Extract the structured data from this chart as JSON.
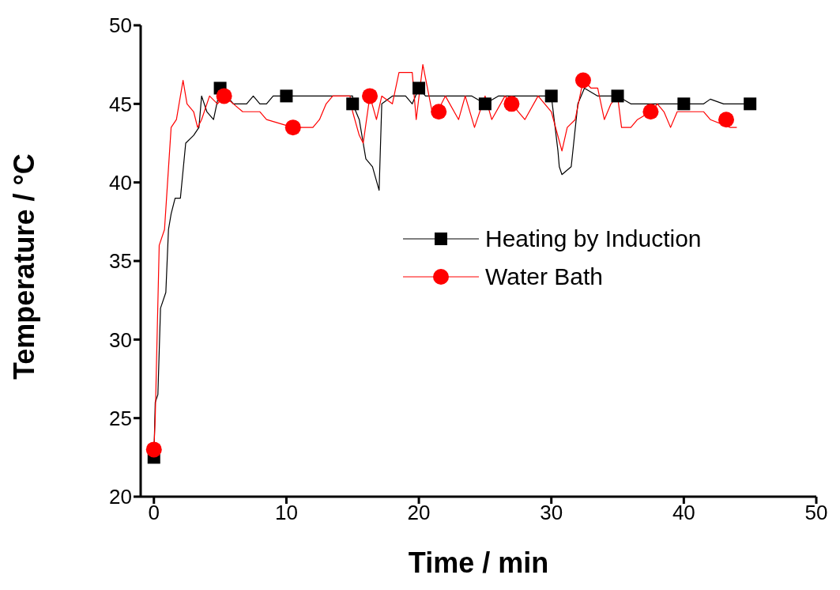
{
  "chart_data": {
    "type": "line",
    "xlabel": "Time / min",
    "ylabel": "Temperature / °C",
    "xlim": [
      -1,
      50
    ],
    "xticks": [
      0,
      10,
      20,
      30,
      40,
      50
    ],
    "ylim": [
      20,
      50
    ],
    "yticks": [
      20,
      25,
      30,
      35,
      40,
      45,
      50
    ],
    "grid": false,
    "legend": "right",
    "line_style": "solid",
    "series": [
      {
        "color": "#000000",
        "marker": "none",
        "x": [
          0,
          0.1,
          0.3,
          0.5,
          0.9,
          1.1,
          1.3,
          1.6,
          2,
          2.4,
          3,
          3.4,
          3.6,
          4,
          4.5,
          5,
          6,
          7,
          7.5,
          8,
          8.5,
          9,
          12,
          15,
          15,
          15.5,
          16,
          16.5,
          17,
          17.2,
          18,
          19,
          19.5,
          20,
          20.5,
          21,
          24,
          25,
          26,
          30,
          30.5,
          30.6,
          30.8,
          31.5,
          32,
          32.5,
          33.5,
          35,
          36,
          40,
          41.5,
          42,
          43,
          45
        ],
        "values": [
          22.5,
          26,
          26.5,
          32,
          33,
          37,
          38,
          39,
          39,
          42.5,
          43,
          43.5,
          45.5,
          44.5,
          44,
          46,
          45,
          45,
          45.5,
          45,
          45,
          45.5,
          45.5,
          45.5,
          45,
          44,
          41.5,
          41,
          39.5,
          45,
          45.5,
          45.5,
          45,
          46,
          45.5,
          45.5,
          45.5,
          45,
          45.5,
          45.5,
          42,
          41,
          40.5,
          41,
          45,
          46,
          45.5,
          45.5,
          45,
          45,
          45,
          45.3,
          45,
          45
        ]
      },
      {
        "color": "#ff0000",
        "marker": "none",
        "x": [
          0,
          0.1,
          0.4,
          0.8,
          1.3,
          1.7,
          2.2,
          2.5,
          3,
          3.3,
          3.6,
          4.2,
          4.8,
          5.3,
          6,
          6.7,
          8,
          8.5,
          10.5,
          12,
          12.5,
          13,
          13.5,
          14.8,
          15,
          15.5,
          15.8,
          16.3,
          16.8,
          17.2,
          18,
          18.5,
          19.5,
          19.8,
          20.3,
          21,
          21.4,
          22,
          23,
          23.5,
          24.2,
          25,
          25.5,
          26.5,
          27,
          28,
          29,
          30,
          30.8,
          31.2,
          31.8,
          32.4,
          33,
          33.5,
          34,
          34.5,
          35,
          35.3,
          36,
          36.5,
          37.5,
          38,
          38.5,
          39,
          39.5,
          41.5,
          42,
          43.5,
          44
        ],
        "values": [
          23,
          25,
          36,
          37,
          43.5,
          44,
          46.5,
          45,
          44.5,
          43.5,
          44,
          45.5,
          45,
          45.5,
          45,
          44.5,
          44.5,
          44,
          43.5,
          43.5,
          44,
          45,
          45.5,
          45.5,
          44.5,
          43,
          42.5,
          45.5,
          44,
          45.5,
          45,
          47,
          47,
          44,
          47.5,
          44.5,
          44.5,
          45.5,
          44,
          45.5,
          43.5,
          45.5,
          44,
          45.5,
          45,
          44,
          45.5,
          44.5,
          42,
          43.5,
          44,
          46.5,
          46,
          46,
          44,
          45,
          45.5,
          43.5,
          43.5,
          44,
          44.5,
          45,
          44.5,
          43.5,
          44.5,
          44.5,
          44,
          43.5,
          43.5
        ]
      },
      {
        "type": "scatter",
        "name": "Heating by Induction",
        "color": "#000000",
        "marker": "square",
        "x": [
          0,
          5,
          10,
          15,
          20,
          25,
          30,
          35,
          40,
          45
        ],
        "values": [
          22.5,
          46,
          45.5,
          45,
          46,
          45,
          45.5,
          45.5,
          45,
          45
        ]
      },
      {
        "type": "scatter",
        "name": "Water Bath",
        "color": "#ff0000",
        "marker": "circle",
        "x": [
          0,
          5.3,
          10.5,
          16.3,
          21.5,
          27,
          32.4,
          37.5,
          43.2
        ],
        "values": [
          23,
          45.5,
          43.5,
          45.5,
          44.5,
          45,
          46.5,
          44.5,
          44
        ]
      }
    ]
  }
}
